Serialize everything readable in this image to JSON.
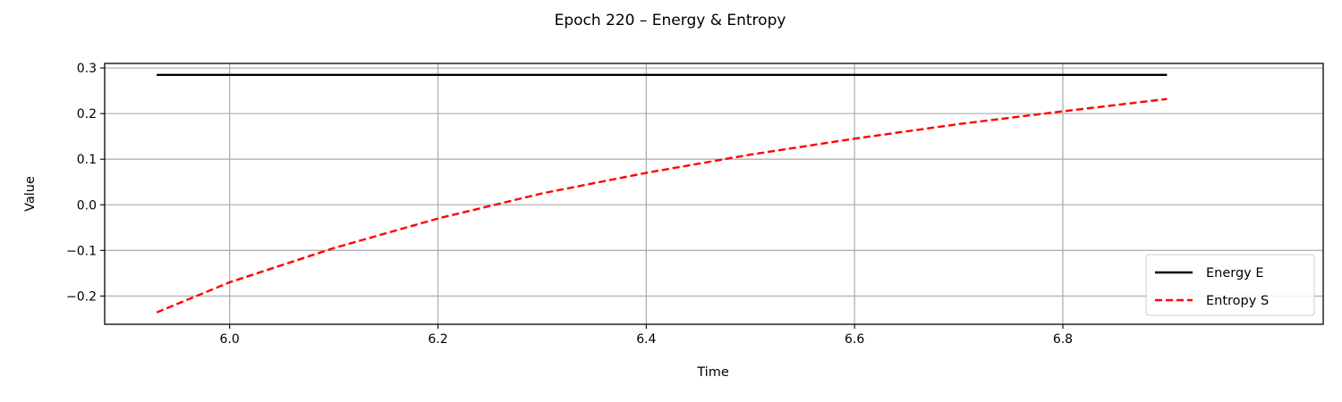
{
  "chart_data": {
    "type": "line",
    "title": "Epoch 220 – Energy & Entropy",
    "xlabel": "Time",
    "ylabel": "Value",
    "xlim": [
      5.88,
      7.05
    ],
    "ylim": [
      -0.262,
      0.31
    ],
    "xticks": [
      6.0,
      6.2,
      6.4,
      6.6,
      6.8
    ],
    "xtick_labels": [
      "6.0",
      "6.2",
      "6.4",
      "6.6",
      "6.8"
    ],
    "yticks": [
      -0.2,
      -0.1,
      0.0,
      0.1,
      0.2,
      0.3
    ],
    "ytick_labels": [
      "−0.2",
      "−0.1",
      "0.0",
      "0.1",
      "0.2",
      "0.3"
    ],
    "grid": true,
    "legend_position": "lower-right",
    "series": [
      {
        "name": "Energy E",
        "color": "#000000",
        "style": "solid",
        "x": [
          5.93,
          6.9
        ],
        "y": [
          0.285,
          0.285
        ]
      },
      {
        "name": "Entropy S",
        "color": "#ff0000",
        "style": "dashed",
        "x": [
          5.93,
          6.0,
          6.1,
          6.2,
          6.3,
          6.4,
          6.5,
          6.6,
          6.7,
          6.8,
          6.9
        ],
        "y": [
          -0.236,
          -0.17,
          -0.095,
          -0.03,
          0.025,
          0.07,
          0.11,
          0.145,
          0.177,
          0.205,
          0.232
        ]
      }
    ]
  }
}
